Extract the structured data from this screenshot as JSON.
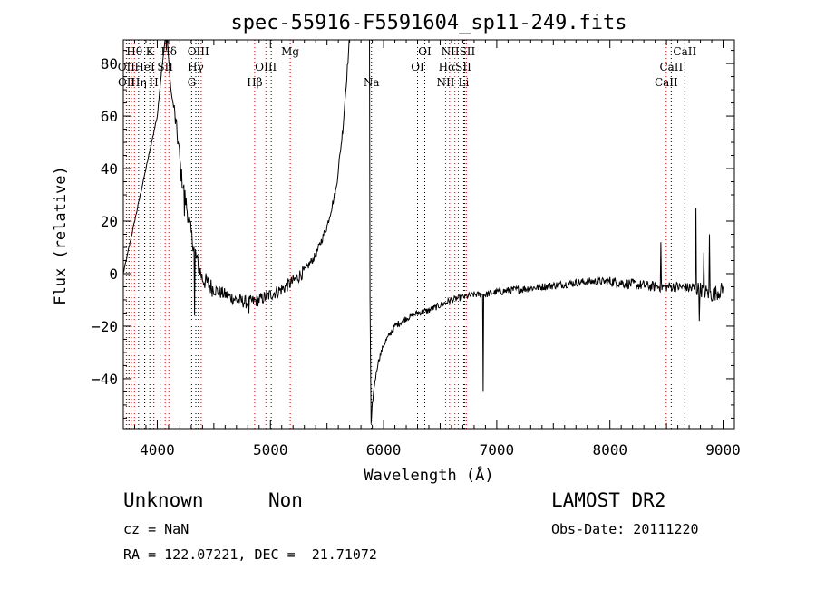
{
  "chart_data": {
    "type": "line",
    "title": "spec-55916-F5591604_sp11-249.fits",
    "xlabel": "Wavelength (Å)",
    "ylabel": "Flux (relative)",
    "xlim": [
      3700,
      9100
    ],
    "ylim": [
      -59,
      89
    ],
    "xticks": [
      4000,
      5000,
      6000,
      7000,
      8000,
      9000
    ],
    "yticks": [
      -40,
      -20,
      0,
      20,
      40,
      60,
      80
    ],
    "ytick_labels": [
      "−40",
      "−20",
      "0",
      "20",
      "40",
      "60",
      "80"
    ],
    "grid": false,
    "series_color": "#000000",
    "line_marker_color": "#c80000",
    "spectrum_anchors": [
      [
        3700,
        0
      ],
      [
        3800,
        20
      ],
      [
        3900,
        40
      ],
      [
        4000,
        60
      ],
      [
        4040,
        78
      ],
      [
        4060,
        85
      ],
      [
        4080,
        95
      ],
      [
        4100,
        82
      ],
      [
        4120,
        70
      ],
      [
        4150,
        62
      ],
      [
        4170,
        55
      ],
      [
        4190,
        48
      ],
      [
        4210,
        38
      ],
      [
        4250,
        28
      ],
      [
        4300,
        15
      ],
      [
        4350,
        5
      ],
      [
        4400,
        -2
      ],
      [
        4500,
        -6
      ],
      [
        4600,
        -8
      ],
      [
        4700,
        -10
      ],
      [
        4800,
        -11
      ],
      [
        4900,
        -10
      ],
      [
        5000,
        -8
      ],
      [
        5100,
        -6
      ],
      [
        5200,
        -3
      ],
      [
        5300,
        1
      ],
      [
        5400,
        7
      ],
      [
        5500,
        18
      ],
      [
        5580,
        32
      ],
      [
        5640,
        55
      ],
      [
        5700,
        90
      ],
      [
        5800,
        95
      ],
      [
        5870,
        95
      ],
      [
        5880,
        -10
      ],
      [
        5890,
        -58
      ],
      [
        5900,
        -50
      ],
      [
        5920,
        -42
      ],
      [
        5950,
        -34
      ],
      [
        6000,
        -27
      ],
      [
        6100,
        -20
      ],
      [
        6200,
        -17
      ],
      [
        6300,
        -15
      ],
      [
        6400,
        -14
      ],
      [
        6500,
        -12
      ],
      [
        6600,
        -10
      ],
      [
        6700,
        -9
      ],
      [
        6800,
        -8
      ],
      [
        6900,
        -8
      ],
      [
        7000,
        -7
      ],
      [
        7200,
        -6
      ],
      [
        7400,
        -5
      ],
      [
        7600,
        -4
      ],
      [
        7800,
        -3
      ],
      [
        8000,
        -3
      ],
      [
        8200,
        -4
      ],
      [
        8400,
        -5
      ],
      [
        8600,
        -5
      ],
      [
        8800,
        -6
      ],
      [
        8900,
        -8
      ],
      [
        9000,
        -6
      ]
    ],
    "spikes": [
      [
        4080,
        85
      ],
      [
        4240,
        22
      ],
      [
        4330,
        -16
      ],
      [
        4810,
        -15
      ],
      [
        5875,
        95
      ],
      [
        6880,
        -45
      ],
      [
        8450,
        12
      ],
      [
        8760,
        25
      ],
      [
        8790,
        -18
      ],
      [
        8830,
        8
      ],
      [
        8880,
        15
      ]
    ],
    "line_markers": [
      {
        "label": "Hθ",
        "x": 3798,
        "row": 0
      },
      {
        "label": "K",
        "x": 3934,
        "row": 0
      },
      {
        "label": "Hδ",
        "x": 4102,
        "row": 0
      },
      {
        "label": "OIII",
        "x": 4363,
        "row": 0
      },
      {
        "label": "Mg",
        "x": 5175,
        "row": 0
      },
      {
        "label": "OI",
        "x": 6364,
        "row": 0
      },
      {
        "label": "NIISII",
        "x": 6660,
        "row": 0
      },
      {
        "label": "CaII",
        "x": 8662,
        "row": 0
      },
      {
        "label": "OII",
        "x": 3727,
        "row": 1
      },
      {
        "label": "HeI",
        "x": 3889,
        "row": 1
      },
      {
        "label": "SII",
        "x": 4070,
        "row": 1
      },
      {
        "label": "Hγ",
        "x": 4341,
        "row": 1
      },
      {
        "label": "OIII",
        "x": 4960,
        "row": 1
      },
      {
        "label": "OI",
        "x": 6300,
        "row": 1
      },
      {
        "label": "HαSII",
        "x": 6630,
        "row": 1
      },
      {
        "label": "CaII",
        "x": 8542,
        "row": 1
      },
      {
        "label": "OII",
        "x": 3729,
        "row": 2
      },
      {
        "label": "Hη",
        "x": 3835,
        "row": 2
      },
      {
        "label": "H",
        "x": 3969,
        "row": 2
      },
      {
        "label": "G",
        "x": 4304,
        "row": 2
      },
      {
        "label": "Hβ",
        "x": 4861,
        "row": 2
      },
      {
        "label": "Na",
        "x": 5893,
        "row": 2
      },
      {
        "label": "NII",
        "x": 6548,
        "row": 2
      },
      {
        "label": "Li",
        "x": 6708,
        "row": 2
      },
      {
        "label": "CaII",
        "x": 8498,
        "row": 2
      }
    ],
    "extra_dotted_lines": [
      3750,
      3771,
      3889,
      3970,
      4026,
      4388,
      5007,
      6583,
      6717,
      6731
    ]
  },
  "info": {
    "class": "Unknown",
    "subclass": "Non",
    "survey": "LAMOST DR2",
    "cz": "cz = NaN",
    "obsdate": "Obs-Date: 20111220",
    "radec": "RA = 122.07221, DEC =  21.71072"
  }
}
